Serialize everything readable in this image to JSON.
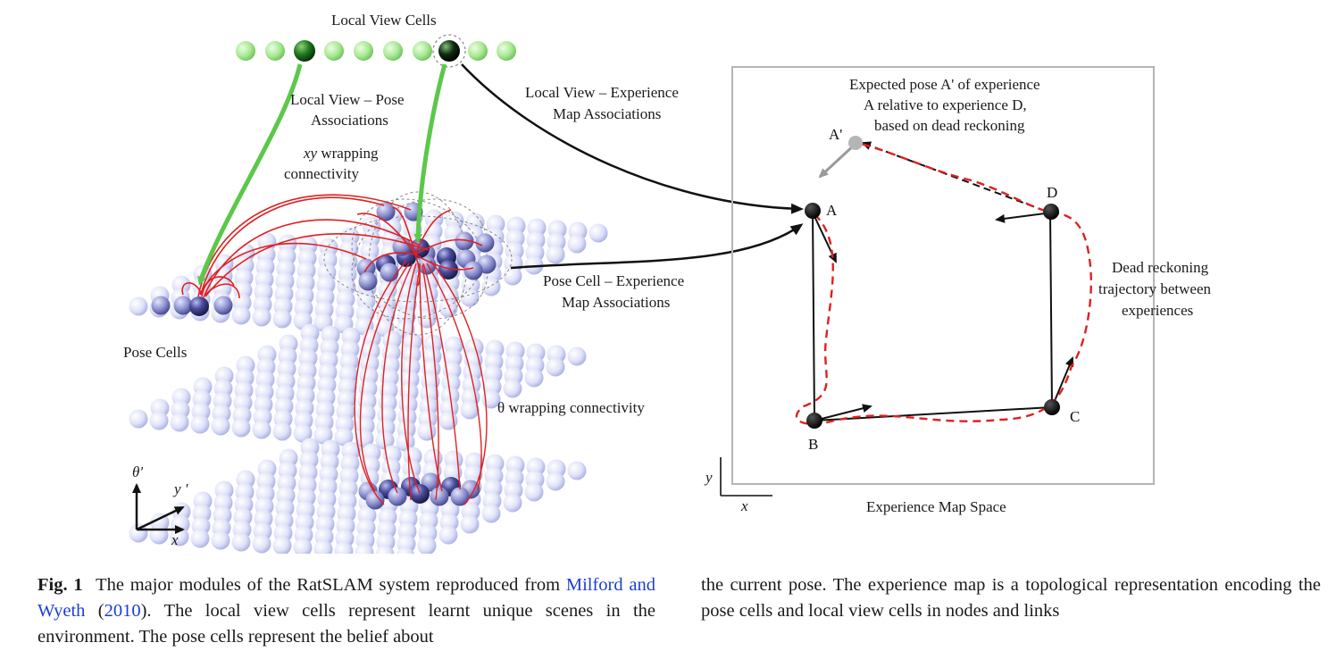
{
  "figure": {
    "labels": {
      "local_view_cells": "Local View Cells",
      "lv_pose_assoc_1": "Local View – Pose",
      "lv_pose_assoc_2": "Associations",
      "lv_exp_assoc_1": "Local View – Experience",
      "lv_exp_assoc_2": "Map Associations",
      "xy_wrap_italic": "xy",
      "xy_wrap_rest": " wrapping",
      "xy_wrap_2": "connectivity",
      "pose_cells": "Pose Cells",
      "theta_wrap": "θ wrapping connectivity",
      "pc_exp_assoc_1": "Pose Cell – Experience",
      "pc_exp_assoc_2": "Map Associations",
      "expected_pose_1": "Expected pose A' of experience",
      "expected_pose_2": "A relative to experience D,",
      "expected_pose_3": "based on dead reckoning",
      "dead_reck_1": "Dead reckoning",
      "dead_reck_2": "trajectory between",
      "dead_reck_3": "experiences",
      "exp_map_space": "Experience Map Space",
      "axis_theta": "θ'",
      "axis_y_prime": "y '",
      "axis_x": "x",
      "map_axis_y": "y",
      "map_axis_x": "x",
      "node_a": "A",
      "node_a_prime": "A'",
      "node_b": "B",
      "node_c": "C",
      "node_d": "D"
    },
    "colors": {
      "green_arrow": "#5cc84a",
      "red_link": "#e02020",
      "pale_sphere": "#dde0f8",
      "dark_sphere": "#30307a",
      "lv_cell_light": "#9be08a",
      "lv_cell_dark": "#145f14"
    }
  },
  "caption": {
    "fig_label": "Fig. 1",
    "part1": "The major modules of the RatSLAM system reproduced from",
    "citation_authors": "Milford and Wyeth",
    "citation_open": " (",
    "citation_year": "2010",
    "part2": "). The local view cells represent learnt unique scenes in the environment. The pose cells represent the belief about",
    "part3": "the current pose. The experience map is a topological representation encoding the pose cells and local view cells in nodes and links"
  }
}
